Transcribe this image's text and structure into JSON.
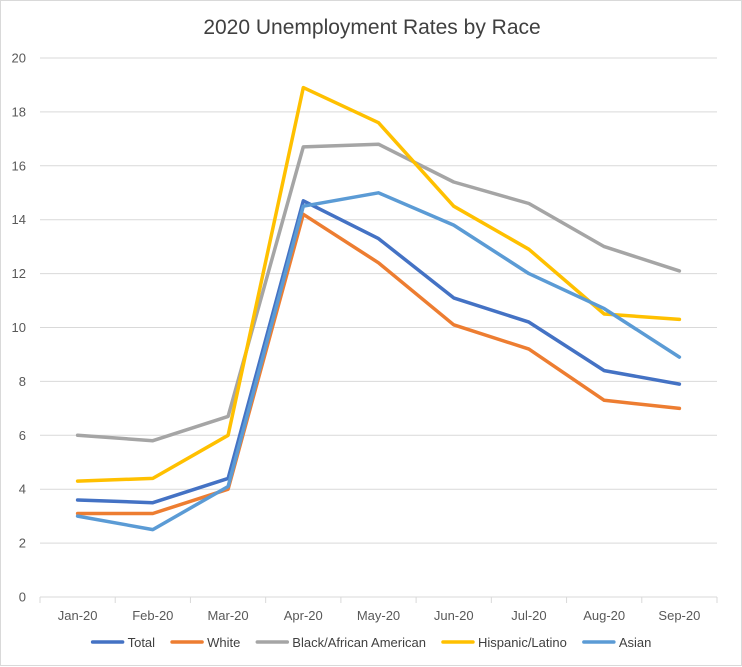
{
  "chart_data": {
    "type": "line",
    "title": "2020 Unemployment Rates by Race",
    "xlabel": "",
    "ylabel": "",
    "categories": [
      "Jan-20",
      "Feb-20",
      "Mar-20",
      "Apr-20",
      "May-20",
      "Jun-20",
      "Jul-20",
      "Aug-20",
      "Sep-20"
    ],
    "ylim": [
      0,
      20
    ],
    "yticks": [
      0,
      2,
      4,
      6,
      8,
      10,
      12,
      14,
      16,
      18,
      20
    ],
    "grid": true,
    "legend_position": "bottom",
    "series": [
      {
        "name": "Total",
        "color": "#4472c4",
        "values": [
          3.6,
          3.5,
          4.4,
          14.7,
          13.3,
          11.1,
          10.2,
          8.4,
          7.9
        ]
      },
      {
        "name": "White",
        "color": "#ed7d31",
        "values": [
          3.1,
          3.1,
          4.0,
          14.2,
          12.4,
          10.1,
          9.2,
          7.3,
          7.0
        ]
      },
      {
        "name": "Black/African American",
        "color": "#a5a5a5",
        "values": [
          6.0,
          5.8,
          6.7,
          16.7,
          16.8,
          15.4,
          14.6,
          13.0,
          12.1
        ]
      },
      {
        "name": "Hispanic/Latino",
        "color": "#ffc000",
        "values": [
          4.3,
          4.4,
          6.0,
          18.9,
          17.6,
          14.5,
          12.9,
          10.5,
          10.3
        ]
      },
      {
        "name": "Asian",
        "color": "#5b9bd5",
        "values": [
          3.0,
          2.5,
          4.1,
          14.5,
          15.0,
          13.8,
          12.0,
          10.7,
          8.9
        ]
      }
    ]
  }
}
